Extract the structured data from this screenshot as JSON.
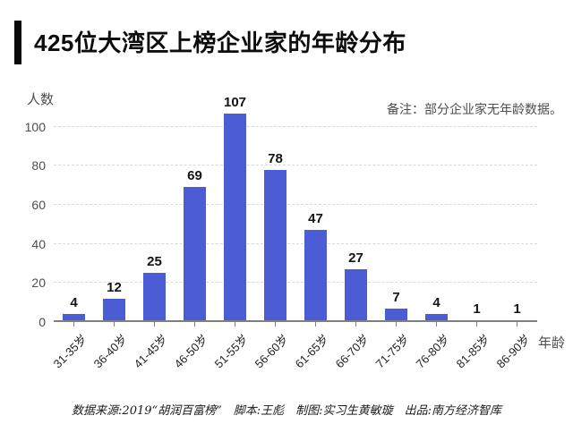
{
  "title": "425位大湾区上榜企业家的年龄分布",
  "note": "备注：部分企业家无年龄数据。",
  "footer": "数据来源:2019“胡润百富榜”　脚本:王彪　制图:实习生黄敏璇　出品:南方经济智库",
  "chart_data": {
    "type": "bar",
    "title": "425位大湾区上榜企业家的年龄分布",
    "categories": [
      "31-35岁",
      "36-40岁",
      "41-45岁",
      "46-50岁",
      "51-55岁",
      "56-60岁",
      "61-65岁",
      "66-70岁",
      "71-75岁",
      "76-80岁",
      "81-85岁",
      "86-90岁"
    ],
    "values": [
      4,
      12,
      25,
      69,
      107,
      78,
      47,
      27,
      7,
      4,
      1,
      1
    ],
    "xlabel": "年龄",
    "ylabel": "人数",
    "ylim": [
      0,
      110
    ],
    "yticks": [
      0,
      20,
      40,
      60,
      80,
      100
    ],
    "grid": "horizontal-dashed",
    "legend": "none",
    "annotation": "备注：部分企业家无年龄数据。",
    "bar_color": "#4c5cd4"
  },
  "colors": {
    "bar": "#4c5cd4",
    "axis": "#7f7f7f",
    "grid": "#d9d9d9",
    "title_accent": "#0a0a0a"
  }
}
